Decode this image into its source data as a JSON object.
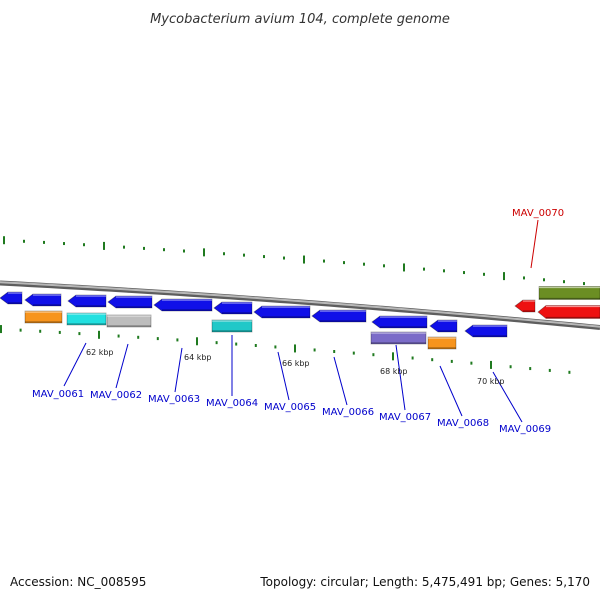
{
  "title": "Mycobacterium avium 104, complete genome",
  "footer": {
    "accession": "Accession: NC_008595",
    "summary": "Topology: circular; Length: 5,475,491 bp; Genes: 5,170"
  },
  "colors": {
    "backbone": "#8a8a8a",
    "tick": "#1f7a1f",
    "gene_blue": "#1010e8",
    "gene_red": "#ee1111",
    "gene_olive": "#6b8e23",
    "gene_orange": "#f7941d",
    "gene_cyan": "#22e0e0",
    "gene_gray": "#bdbdbd",
    "gene_teal": "#20c8c8",
    "gene_purple": "#7b6cc8",
    "label_blue": "#0000cc",
    "label_red": "#cc0000"
  },
  "kbp_labels": [
    "62 kbp",
    "64 kbp",
    "66 kbp",
    "68 kbp",
    "70 kbp"
  ],
  "gene_labels": [
    {
      "text": "MAV_0061",
      "color": "label_blue"
    },
    {
      "text": "MAV_0062",
      "color": "label_blue"
    },
    {
      "text": "MAV_0063",
      "color": "label_blue"
    },
    {
      "text": "MAV_0064",
      "color": "label_blue"
    },
    {
      "text": "MAV_0065",
      "color": "label_blue"
    },
    {
      "text": "MAV_0066",
      "color": "label_blue"
    },
    {
      "text": "MAV_0067",
      "color": "label_blue"
    },
    {
      "text": "MAV_0068",
      "color": "label_blue"
    },
    {
      "text": "MAV_0069",
      "color": "label_blue"
    },
    {
      "text": "MAV_0070",
      "color": "label_red"
    }
  ]
}
